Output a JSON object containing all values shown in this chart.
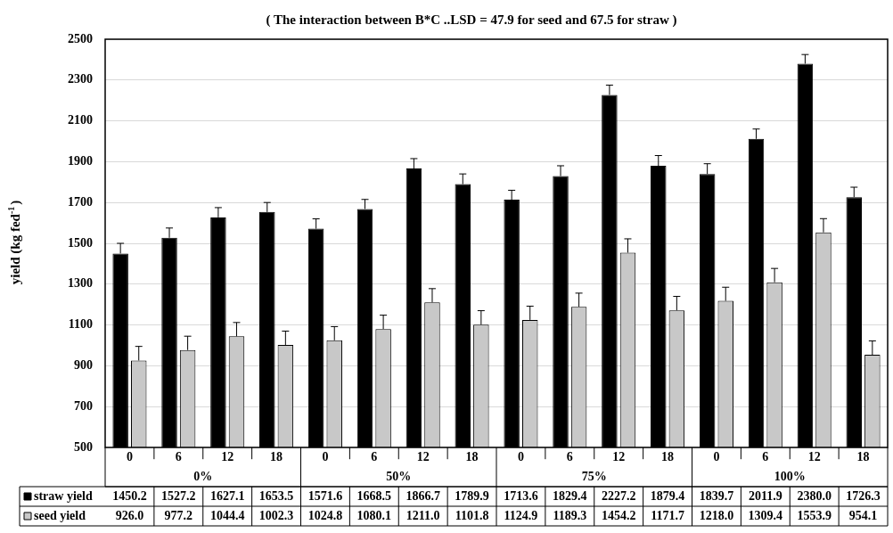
{
  "chart_data": {
    "type": "bar",
    "title": "( The interaction between B*C ..LSD = 47.9 for seed and 67.5 for straw )",
    "ylabel": "yield (kg fed$^{-1}$)",
    "categories": [
      "0",
      "6",
      "12",
      "18",
      "0",
      "6",
      "12",
      "18",
      "0",
      "6",
      "12",
      "18",
      "0",
      "6",
      "12",
      "18"
    ],
    "annotations": [
      "0%",
      "50%",
      "75%",
      "100%"
    ],
    "series": [
      {
        "name": "straw yield",
        "color": "#000000",
        "values": [
          1450.2,
          1527.2,
          1627.1,
          1653.5,
          1571.6,
          1668.5,
          1866.7,
          1789.9,
          1713.6,
          1829.4,
          2227.2,
          1879.4,
          1839.7,
          2011.9,
          2380.0,
          1726.3
        ],
        "value_labels": [
          "1450.2",
          "1527.2",
          "1627.1",
          "1653.5",
          "1571.6",
          "1668.5",
          "1866.7",
          "1789.9",
          "1713.6",
          "1829.4",
          "2227.2",
          "1879.4",
          "1839.7",
          "2011.9",
          "2380.0",
          "1726.3"
        ],
        "errors": [
          [
            1450.2,
            1500
          ],
          [
            1527.2,
            1575
          ],
          [
            1627.1,
            1675
          ],
          [
            1653.5,
            1700
          ],
          [
            1571.6,
            1620
          ],
          [
            1668.5,
            1715
          ],
          [
            1866.7,
            1915
          ],
          [
            1789.9,
            1840
          ],
          [
            1713.6,
            1760
          ],
          [
            1829.4,
            1880
          ],
          [
            2227.2,
            2275
          ],
          [
            1879.4,
            1930
          ],
          [
            1839.7,
            1890
          ],
          [
            2011.9,
            2060
          ],
          [
            2380.0,
            2425
          ],
          [
            1726.3,
            1775
          ]
        ]
      },
      {
        "name": "seed yield",
        "color": "#c8c8c8",
        "values": [
          926.0,
          977.2,
          1044.4,
          1002.3,
          1024.8,
          1080.1,
          1211.0,
          1101.8,
          1124.9,
          1189.3,
          1454.2,
          1171.7,
          1218.0,
          1309.4,
          1553.9,
          954.1
        ],
        "value_labels": [
          "926.0",
          "977.2",
          "1044.4",
          "1002.3",
          "1024.8",
          "1080.1",
          "1211.0",
          "1101.8",
          "1124.9",
          "1189.3",
          "1454.2",
          "1171.7",
          "1218.0",
          "1309.4",
          "1553.9",
          "954.1"
        ],
        "errors": [
          [
            926.0,
            995
          ],
          [
            977.2,
            1045
          ],
          [
            1044.4,
            1112
          ],
          [
            1002.3,
            1070
          ],
          [
            1024.8,
            1092
          ],
          [
            1080.1,
            1148
          ],
          [
            1211.0,
            1278
          ],
          [
            1101.8,
            1170
          ],
          [
            1124.9,
            1192
          ],
          [
            1189.3,
            1256
          ],
          [
            1454.2,
            1522
          ],
          [
            1171.7,
            1240
          ],
          [
            1218.0,
            1285
          ],
          [
            1309.4,
            1377
          ],
          [
            1553.9,
            1621
          ],
          [
            954.1,
            1022
          ]
        ]
      }
    ],
    "ylim": [
      500,
      2500
    ],
    "yticks": [
      500,
      700,
      900,
      1100,
      1300,
      1500,
      1700,
      1900,
      2100,
      2300,
      2500
    ],
    "grid": "y",
    "legend": "bottom left"
  }
}
